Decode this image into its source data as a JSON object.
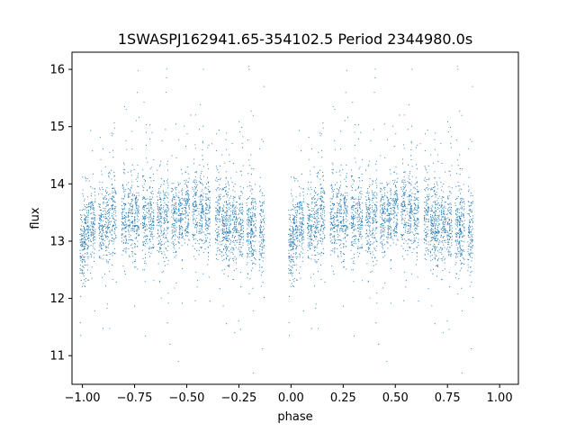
{
  "chart_data": {
    "type": "scatter",
    "title": "1SWASPJ162941.65-354102.5 Period 2344980.0s",
    "xlabel": "phase",
    "ylabel": "flux",
    "xlim": [
      -1.05,
      1.09
    ],
    "ylim": [
      10.5,
      16.3
    ],
    "xticks": [
      -1.0,
      -0.75,
      -0.5,
      -0.25,
      0.0,
      0.25,
      0.5,
      0.75,
      1.0
    ],
    "xtick_labels": [
      "−1.00",
      "−0.75",
      "−0.50",
      "−0.25",
      "0.00",
      "0.25",
      "0.50",
      "0.75",
      "1.00"
    ],
    "yticks": [
      11,
      12,
      13,
      14,
      15,
      16
    ],
    "ytick_labels": [
      "11",
      "12",
      "13",
      "14",
      "15",
      "16"
    ],
    "grid": false,
    "point_color": "#1f77b4",
    "series": [
      {
        "description": "phase-folded light curve, dense vertical clusters; shape repeats for phase p and p+1",
        "cluster_phases": [
          -1.0,
          -0.98,
          -0.95,
          -0.91,
          -0.88,
          -0.85,
          -0.8,
          -0.77,
          -0.74,
          -0.7,
          -0.67,
          -0.63,
          -0.6,
          -0.56,
          -0.53,
          -0.5,
          -0.46,
          -0.43,
          -0.4,
          -0.35,
          -0.32,
          -0.3,
          -0.27,
          -0.24,
          -0.2,
          -0.18,
          -0.14
        ],
        "cluster_median_flux": [
          12.9,
          13.2,
          13.3,
          13.3,
          13.3,
          13.4,
          13.4,
          13.4,
          13.4,
          13.4,
          13.4,
          13.3,
          13.4,
          13.4,
          13.4,
          13.5,
          13.5,
          13.5,
          13.4,
          13.4,
          13.3,
          13.3,
          13.3,
          13.3,
          13.2,
          13.2,
          13.2
        ],
        "flux_min": 10.7,
        "flux_max": 16.1,
        "samples": [
          [
            -0.99,
            12.9
          ],
          [
            -0.97,
            13.1
          ],
          [
            -0.88,
            11.9
          ],
          [
            -0.87,
            14.2
          ],
          [
            -0.8,
            13.4
          ],
          [
            -0.79,
            15.3
          ],
          [
            -0.72,
            13.3
          ],
          [
            -0.71,
            12.5
          ],
          [
            -0.6,
            15.6
          ],
          [
            -0.58,
            11.2
          ],
          [
            -0.54,
            10.9
          ],
          [
            -0.5,
            13.5
          ],
          [
            -0.48,
            15.2
          ],
          [
            -0.45,
            12.2
          ],
          [
            -0.42,
            16.0
          ],
          [
            -0.38,
            14.7
          ],
          [
            -0.33,
            13.2
          ],
          [
            -0.31,
            14.6
          ],
          [
            -0.3,
            12.9
          ],
          [
            -0.27,
            11.4
          ],
          [
            -0.25,
            13.3
          ],
          [
            -0.2,
            16.0
          ],
          [
            -0.18,
            10.7
          ],
          [
            -0.13,
            15.7
          ],
          [
            0.01,
            12.9
          ],
          [
            0.03,
            13.1
          ],
          [
            0.12,
            11.9
          ],
          [
            0.13,
            14.2
          ],
          [
            0.2,
            13.4
          ],
          [
            0.21,
            15.3
          ],
          [
            0.28,
            13.3
          ],
          [
            0.29,
            12.5
          ],
          [
            0.4,
            15.6
          ],
          [
            0.42,
            11.2
          ],
          [
            0.46,
            10.9
          ],
          [
            0.5,
            13.5
          ],
          [
            0.52,
            15.2
          ],
          [
            0.55,
            12.2
          ],
          [
            0.58,
            16.0
          ],
          [
            0.62,
            14.7
          ],
          [
            0.67,
            13.2
          ],
          [
            0.69,
            14.6
          ],
          [
            0.7,
            12.9
          ],
          [
            0.73,
            11.4
          ],
          [
            0.75,
            13.3
          ],
          [
            0.8,
            16.0
          ],
          [
            0.82,
            10.7
          ],
          [
            0.87,
            15.7
          ]
        ]
      }
    ]
  }
}
